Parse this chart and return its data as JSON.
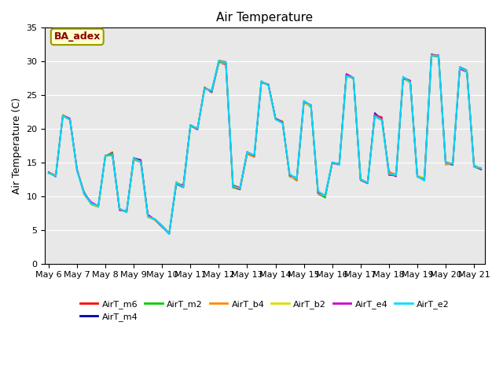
{
  "title": "Air Temperature",
  "ylabel": "Air Temperature (C)",
  "ylim": [
    0,
    35
  ],
  "yticks": [
    0,
    5,
    10,
    15,
    20,
    25,
    30,
    35
  ],
  "annotation_text": "BA_adex",
  "bg_color": "#e8e8e8",
  "series_colors": {
    "AirT_m6": "#ff0000",
    "AirT_m4": "#0000aa",
    "AirT_m2": "#00cc00",
    "AirT_b4": "#ff8800",
    "AirT_b2": "#dddd00",
    "AirT_e4": "#cc00cc",
    "AirT_e2": "#00ddff"
  },
  "base_temps": [
    13.5,
    13.0,
    22.0,
    21.5,
    14.0,
    10.5,
    9.0,
    8.5,
    16.0,
    16.2,
    8.0,
    7.8,
    15.5,
    15.2,
    7.0,
    6.5,
    5.5,
    4.5,
    12.0,
    11.5,
    20.5,
    20.0,
    26.0,
    25.5,
    30.0,
    29.8,
    11.5,
    11.2,
    16.5,
    16.0,
    27.0,
    26.5,
    21.5,
    21.0,
    13.0,
    12.5,
    24.0,
    23.5,
    10.5,
    10.0,
    15.0,
    14.8,
    28.0,
    27.5,
    12.5,
    12.0,
    22.0,
    21.5,
    13.5,
    13.0,
    27.5,
    27.0,
    13.0,
    12.5,
    31.0,
    30.8,
    15.0,
    14.8,
    29.0,
    28.5,
    14.5,
    14.0
  ],
  "line_width": 1.2,
  "figsize": [
    6.4,
    4.8
  ],
  "dpi": 100
}
